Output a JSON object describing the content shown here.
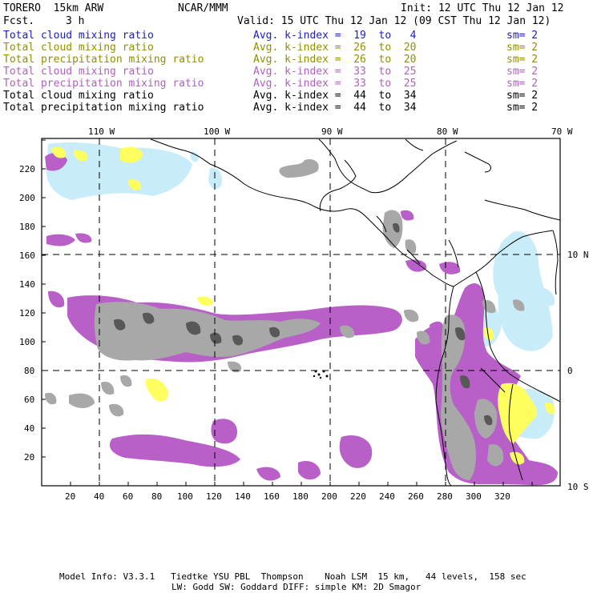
{
  "header": {
    "model": "TORERO  15km ARW",
    "org": "NCAR/MMM",
    "init": "Init: 12 UTC Thu 12 Jan 12",
    "fcst_label": "Fcst.",
    "fcst_value": "3 h",
    "valid": "Valid: 15 UTC Thu 12 Jan 12 (09 CST Thu 12 Jan 12)"
  },
  "legend": [
    {
      "field": "Total cloud mixing ratio",
      "k": "Avg. k-index =  19  to   4",
      "sm": "sm= 2",
      "color": "#2020c0"
    },
    {
      "field": "Total cloud mixing ratio",
      "k": "Avg. k-index =  26  to  20",
      "sm": "sm= 2",
      "color": "#909000"
    },
    {
      "field": "Total precipitation mixing ratio",
      "k": "Avg. k-index =  26  to  20",
      "sm": "sm= 2",
      "color": "#909000"
    },
    {
      "field": "Total cloud mixing ratio",
      "k": "Avg. k-index =  33  to  25",
      "sm": "sm= 2",
      "color": "#b060c0"
    },
    {
      "field": "Total precipitation mixing ratio",
      "k": "Avg. k-index =  33  to  25",
      "sm": "sm= 2",
      "color": "#b060c0"
    },
    {
      "field": "Total cloud mixing ratio",
      "k": "Avg. k-index =  44  to  34",
      "sm": "sm= 2",
      "color": "#000000"
    },
    {
      "field": "Total precipitation mixing ratio",
      "k": "Avg. k-index =  44  to  34",
      "sm": "sm= 2",
      "color": "#000000"
    }
  ],
  "map": {
    "top_lon_labels": [
      "110 W",
      "100 W",
      "90 W",
      "80 W",
      "70 W"
    ],
    "right_lat_labels": [
      "10 N",
      "0",
      "10 S"
    ],
    "x_ticks": [
      "20",
      "40",
      "60",
      "80",
      "100",
      "120",
      "140",
      "160",
      "180",
      "200",
      "220",
      "240",
      "260",
      "280",
      "300",
      "320"
    ],
    "y_ticks": [
      "20",
      "40",
      "60",
      "80",
      "100",
      "120",
      "140",
      "160",
      "180",
      "200",
      "220"
    ],
    "colors": {
      "light_blue": "#c8ecfa",
      "yellow": "#ffff60",
      "purple": "#b860c8",
      "gray": "#a8a8a8",
      "dark_gray": "#505050"
    }
  },
  "footer": {
    "line1": "Model Info: V3.3.1   Tiedtke YSU PBL  Thompson    Noah LSM  15 km,   44 levels,  158 sec",
    "line2": "LW: Godd SW: Goddard DIFF: simple KM: 2D Smagor"
  }
}
